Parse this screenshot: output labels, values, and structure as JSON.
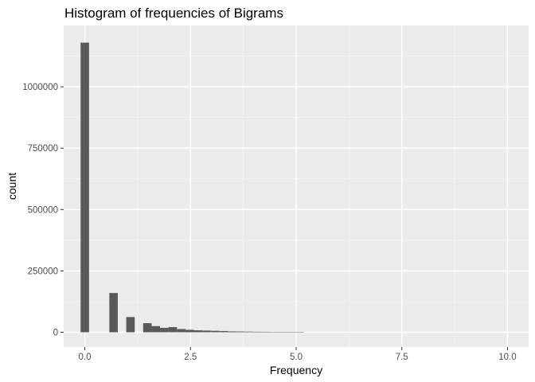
{
  "chart_data": {
    "type": "bar",
    "title": "Histogram of frequencies of Bigrams",
    "xlabel": "Frequency",
    "ylabel": "count",
    "xlim": [
      -0.5,
      10.5
    ],
    "ylim": [
      -60000,
      1250000
    ],
    "x_ticks": [
      0,
      2.5,
      5,
      7.5,
      10
    ],
    "x_tick_labels": [
      "0.0",
      "2.5",
      "5.0",
      "7.5",
      "10.0"
    ],
    "y_ticks": [
      0,
      250000,
      500000,
      750000,
      1000000
    ],
    "y_tick_labels": [
      "0",
      "250000",
      "500000",
      "750000",
      "1000000"
    ],
    "grid": true,
    "bar_color": "#595959",
    "panel_color": "#ebebeb",
    "bins": [
      {
        "start": -0.1,
        "end": 0.1,
        "count": 1180000
      },
      {
        "start": 0.58,
        "end": 0.78,
        "count": 160000
      },
      {
        "start": 0.98,
        "end": 1.18,
        "count": 62000
      },
      {
        "start": 1.38,
        "end": 1.58,
        "count": 37000
      },
      {
        "start": 1.58,
        "end": 1.78,
        "count": 25000
      },
      {
        "start": 1.78,
        "end": 1.98,
        "count": 18000
      },
      {
        "start": 1.98,
        "end": 2.18,
        "count": 21000
      },
      {
        "start": 2.18,
        "end": 2.38,
        "count": 13000
      },
      {
        "start": 2.38,
        "end": 2.58,
        "count": 10000
      },
      {
        "start": 2.58,
        "end": 2.78,
        "count": 8000
      },
      {
        "start": 2.78,
        "end": 2.98,
        "count": 7000
      },
      {
        "start": 2.98,
        "end": 3.18,
        "count": 6000
      },
      {
        "start": 3.18,
        "end": 3.38,
        "count": 5000
      },
      {
        "start": 3.38,
        "end": 3.58,
        "count": 3500
      },
      {
        "start": 3.58,
        "end": 3.78,
        "count": 3000
      },
      {
        "start": 3.78,
        "end": 3.98,
        "count": 2500
      },
      {
        "start": 3.98,
        "end": 4.18,
        "count": 2000
      },
      {
        "start": 4.18,
        "end": 4.38,
        "count": 1800
      },
      {
        "start": 4.38,
        "end": 4.58,
        "count": 1500
      },
      {
        "start": 4.58,
        "end": 4.78,
        "count": 1300
      },
      {
        "start": 4.78,
        "end": 4.98,
        "count": 1200
      },
      {
        "start": 4.98,
        "end": 5.18,
        "count": 1000
      }
    ]
  }
}
